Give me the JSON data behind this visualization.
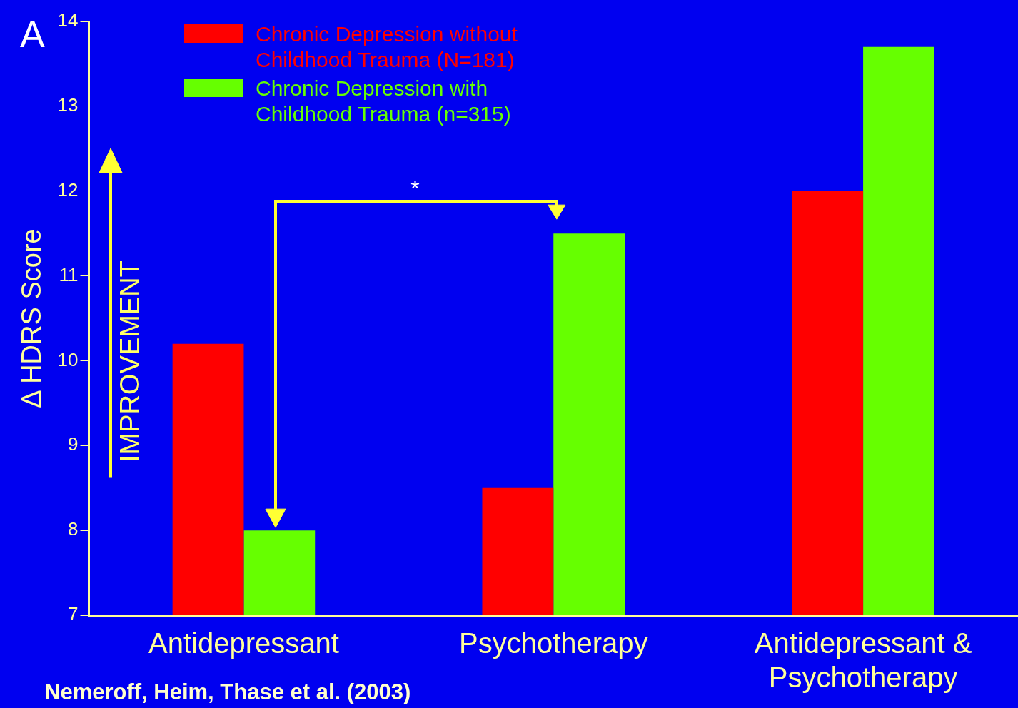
{
  "chart_data": {
    "type": "bar",
    "ylabel": "Δ HDRS Score",
    "categories": [
      "Antidepressant",
      "Psychotherapy",
      "Antidepressant & Psychotherapy"
    ],
    "series": [
      {
        "name": "Chronic Depression without Childhood Trauma (N=181)",
        "color": "#ff0000",
        "values": [
          10.2,
          8.5,
          12.0
        ]
      },
      {
        "name": "Chronic Depression with Childhood Trauma (n=315)",
        "color": "#66ff00",
        "values": [
          8.0,
          11.5,
          13.7
        ]
      }
    ],
    "ylim": [
      7,
      14
    ],
    "yticks": [
      7,
      8,
      9,
      10,
      11,
      12,
      13,
      14
    ],
    "grid": false,
    "legend": "top left",
    "annotations": [
      "A",
      "IMPROVEMENT",
      "*",
      "Nemeroff, Heim, Thase et al. (2003)"
    ]
  }
}
